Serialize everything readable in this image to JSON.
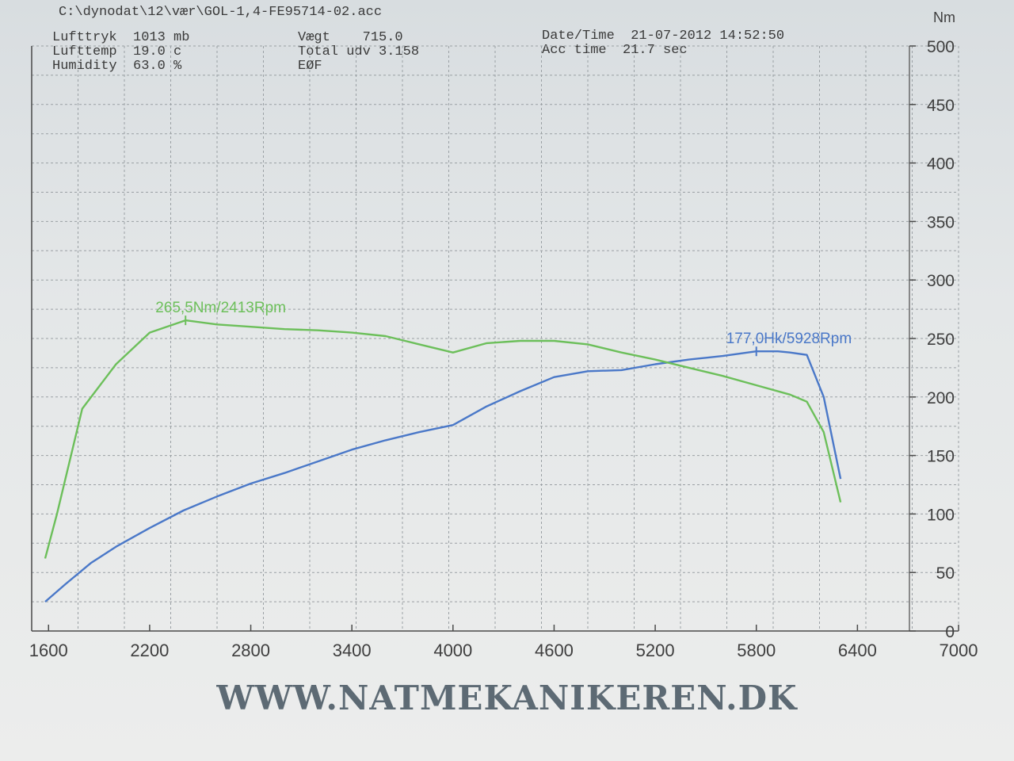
{
  "header": {
    "file_path": "C:\\dynodat\\12\\vær\\GOL-1,4-FE95714-02.acc",
    "lufttryk": "Lufttryk  1013 mb",
    "lufttemp": "Lufttemp  19.0 c",
    "humidity": "Humidity  63.0 %",
    "vaegt": "Vægt    715.0",
    "total_udv": "Total udv 3.158",
    "eof": "EØF",
    "datetime": "Date/Time  21-07-2012 14:52:50",
    "acc_time": "Acc time  21.7 sec"
  },
  "footer": {
    "website": "WWW.NATMEKANIKEREN.DK"
  },
  "colors": {
    "power": "#4a78c8",
    "torque": "#6cbf5a",
    "grid": "#9aa0a4",
    "axis": "#4a4a4a"
  },
  "chart_data": {
    "type": "line",
    "xlabel": "",
    "ylabel": "Nm",
    "xlim": [
      1500,
      7000
    ],
    "ylim": [
      0,
      500
    ],
    "x_ticks": [
      "1600",
      "2200",
      "2800",
      "3400",
      "4000",
      "4600",
      "5200",
      "5800",
      "6400",
      "7000"
    ],
    "y_ticks": [
      "0",
      "50",
      "100",
      "150",
      "200",
      "250",
      "300",
      "350",
      "400",
      "450",
      "500"
    ],
    "grid": true,
    "series": [
      {
        "key": "power",
        "x": [
          1580,
          1700,
          1850,
          2000,
          2200,
          2400,
          2600,
          2800,
          3000,
          3200,
          3400,
          3600,
          3800,
          4000,
          4200,
          4400,
          4600,
          4800,
          5000,
          5200,
          5400,
          5600,
          5800,
          5928,
          6000,
          6100,
          6200,
          6300
        ],
        "values": [
          25,
          40,
          58,
          72,
          88,
          103,
          115,
          126,
          135,
          145,
          155,
          163,
          170,
          176,
          192,
          205,
          217,
          222,
          223,
          228,
          232,
          235,
          239,
          239,
          238,
          236,
          200,
          130
        ],
        "annotation": "177,0Hk/5928Rpm"
      },
      {
        "key": "torque",
        "x": [
          1580,
          1650,
          1800,
          2000,
          2200,
          2413,
          2600,
          2800,
          3000,
          3200,
          3400,
          3600,
          3800,
          4000,
          4200,
          4400,
          4600,
          4800,
          5000,
          5200,
          5400,
          5600,
          5800,
          6000,
          6100,
          6200,
          6300
        ],
        "values": [
          62,
          100,
          190,
          228,
          255,
          265.5,
          262,
          260,
          258,
          257,
          255,
          252,
          245,
          238,
          246,
          248,
          248,
          245,
          238,
          232,
          225,
          218,
          210,
          202,
          196,
          170,
          110
        ],
        "annotation": "265,5Nm/2413Rpm"
      }
    ]
  }
}
